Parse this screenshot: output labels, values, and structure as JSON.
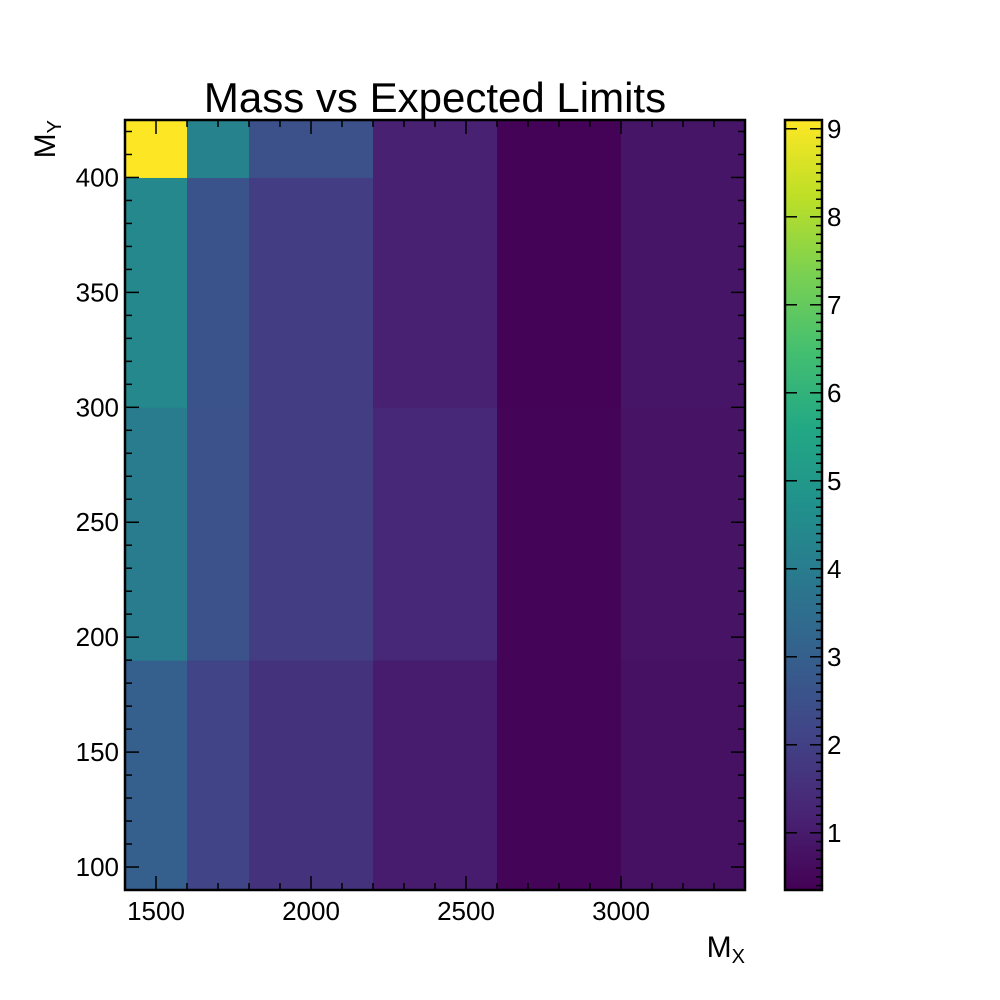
{
  "chart_data": {
    "type": "heatmap",
    "title": "Mass vs Expected Limits",
    "xlabel": {
      "main": "M",
      "sub": "X"
    },
    "ylabel": {
      "main": "M",
      "sub": "Y"
    },
    "xlim": [
      1400,
      3400
    ],
    "ylim": [
      90,
      425
    ],
    "x_ticks": [
      1500,
      2000,
      2500,
      3000
    ],
    "y_ticks": [
      100,
      150,
      200,
      250,
      300,
      350,
      400
    ],
    "colormap": "viridis",
    "color_range": [
      0.35,
      9.1
    ],
    "colorbar_ticks": [
      1,
      2,
      3,
      4,
      5,
      6,
      7,
      8,
      9
    ],
    "x_edges": [
      1400,
      1600,
      1800,
      2200,
      2600,
      3000,
      3400
    ],
    "y_edges": [
      90,
      190,
      300,
      400,
      425
    ],
    "values": [
      [
        3.0,
        2.1,
        1.6,
        1.0,
        0.45,
        0.75
      ],
      [
        4.0,
        2.55,
        1.9,
        1.3,
        0.45,
        0.8
      ],
      [
        4.4,
        2.6,
        1.9,
        1.15,
        0.4,
        0.85
      ],
      [
        9.1,
        4.2,
        2.5,
        1.15,
        0.4,
        0.85
      ]
    ]
  }
}
